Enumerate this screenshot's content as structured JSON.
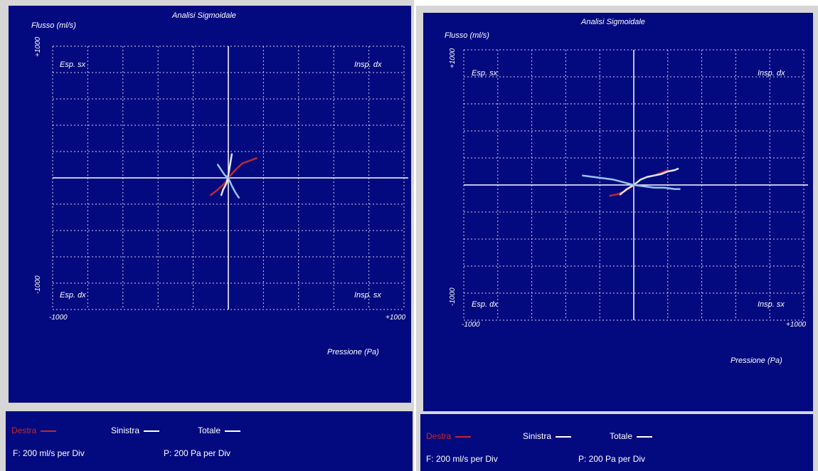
{
  "chart_data": [
    {
      "type": "line",
      "title": "Analisi Sigmoidale",
      "xlabel": "Pressione (Pa)",
      "ylabel": "Flusso (ml/s)",
      "xlim": [
        -1000,
        1000
      ],
      "ylim": [
        -1000,
        1000
      ],
      "xmin_label": "-1000",
      "xmax_label": "+1000",
      "ymin_label": "-1000",
      "ymax_label": "+1000",
      "grid": true,
      "quadrants": {
        "top_left": "Esp. sx",
        "top_right": "Insp. dx",
        "bottom_left": "Esp. dx",
        "bottom_right": "Insp. sx"
      },
      "series": [
        {
          "name": "Destra",
          "color": "#c0282e",
          "x": [
            -100,
            -60,
            -20,
            0,
            40,
            80,
            120,
            160
          ],
          "y": [
            -130,
            -90,
            -40,
            0,
            60,
            110,
            130,
            150
          ]
        },
        {
          "name": "Sinistra",
          "color": "#dfe7f2",
          "x": [
            20,
            10,
            0,
            -10,
            -30,
            -40
          ],
          "y": [
            180,
            100,
            20,
            -40,
            -90,
            -130
          ]
        },
        {
          "name": "Totale",
          "color": "#95c4ef",
          "x": [
            -60,
            -40,
            -20,
            0,
            20,
            40,
            60
          ],
          "y": [
            100,
            60,
            20,
            0,
            -60,
            -110,
            -150
          ]
        }
      ]
    },
    {
      "type": "line",
      "title": "Analisi Sigmoidale",
      "xlabel": "Pressione (Pa)",
      "ylabel": "Flusso (ml/s)",
      "xlim": [
        -1000,
        1000
      ],
      "ylim": [
        -1000,
        1000
      ],
      "xmin_label": "-1000",
      "xmax_label": "+1000",
      "ymin_label": "-1000",
      "ymax_label": "+1000",
      "grid": true,
      "quadrants": {
        "top_left": "Esp. sx",
        "top_right": "Insp. dx",
        "bottom_left": "Esp. dx",
        "bottom_right": "Insp. sx"
      },
      "series": [
        {
          "name": "Destra",
          "color": "#c0282e",
          "x": [
            -140,
            -100,
            -60,
            -20,
            0,
            40,
            80,
            120,
            160,
            200
          ],
          "y": [
            -80,
            -70,
            -50,
            -20,
            0,
            40,
            60,
            70,
            90,
            110
          ]
        },
        {
          "name": "Sinistra",
          "color": "#dfe7f2",
          "x": [
            -80,
            -40,
            0,
            40,
            80,
            120,
            160,
            200,
            240,
            260
          ],
          "y": [
            -70,
            -30,
            0,
            40,
            60,
            70,
            80,
            100,
            110,
            120
          ]
        },
        {
          "name": "Totale",
          "color": "#95c4ef",
          "x": [
            -300,
            -240,
            -180,
            -120,
            -60,
            0,
            60,
            120,
            180,
            240,
            270
          ],
          "y": [
            70,
            60,
            50,
            40,
            20,
            0,
            -10,
            -20,
            -20,
            -30,
            -30
          ]
        }
      ]
    }
  ],
  "legends": [
    {
      "destra": "Destra",
      "sinistra": "Sinistra",
      "totale": "Totale",
      "f_scale": "F: 200 ml/s per Div",
      "p_scale": "P: 200 Pa per Div"
    },
    {
      "destra": "Destra",
      "sinistra": "Sinistra",
      "totale": "Totale",
      "f_scale": "F: 200 ml/s per Div",
      "p_scale": "P: 200 Pa per Div"
    }
  ]
}
